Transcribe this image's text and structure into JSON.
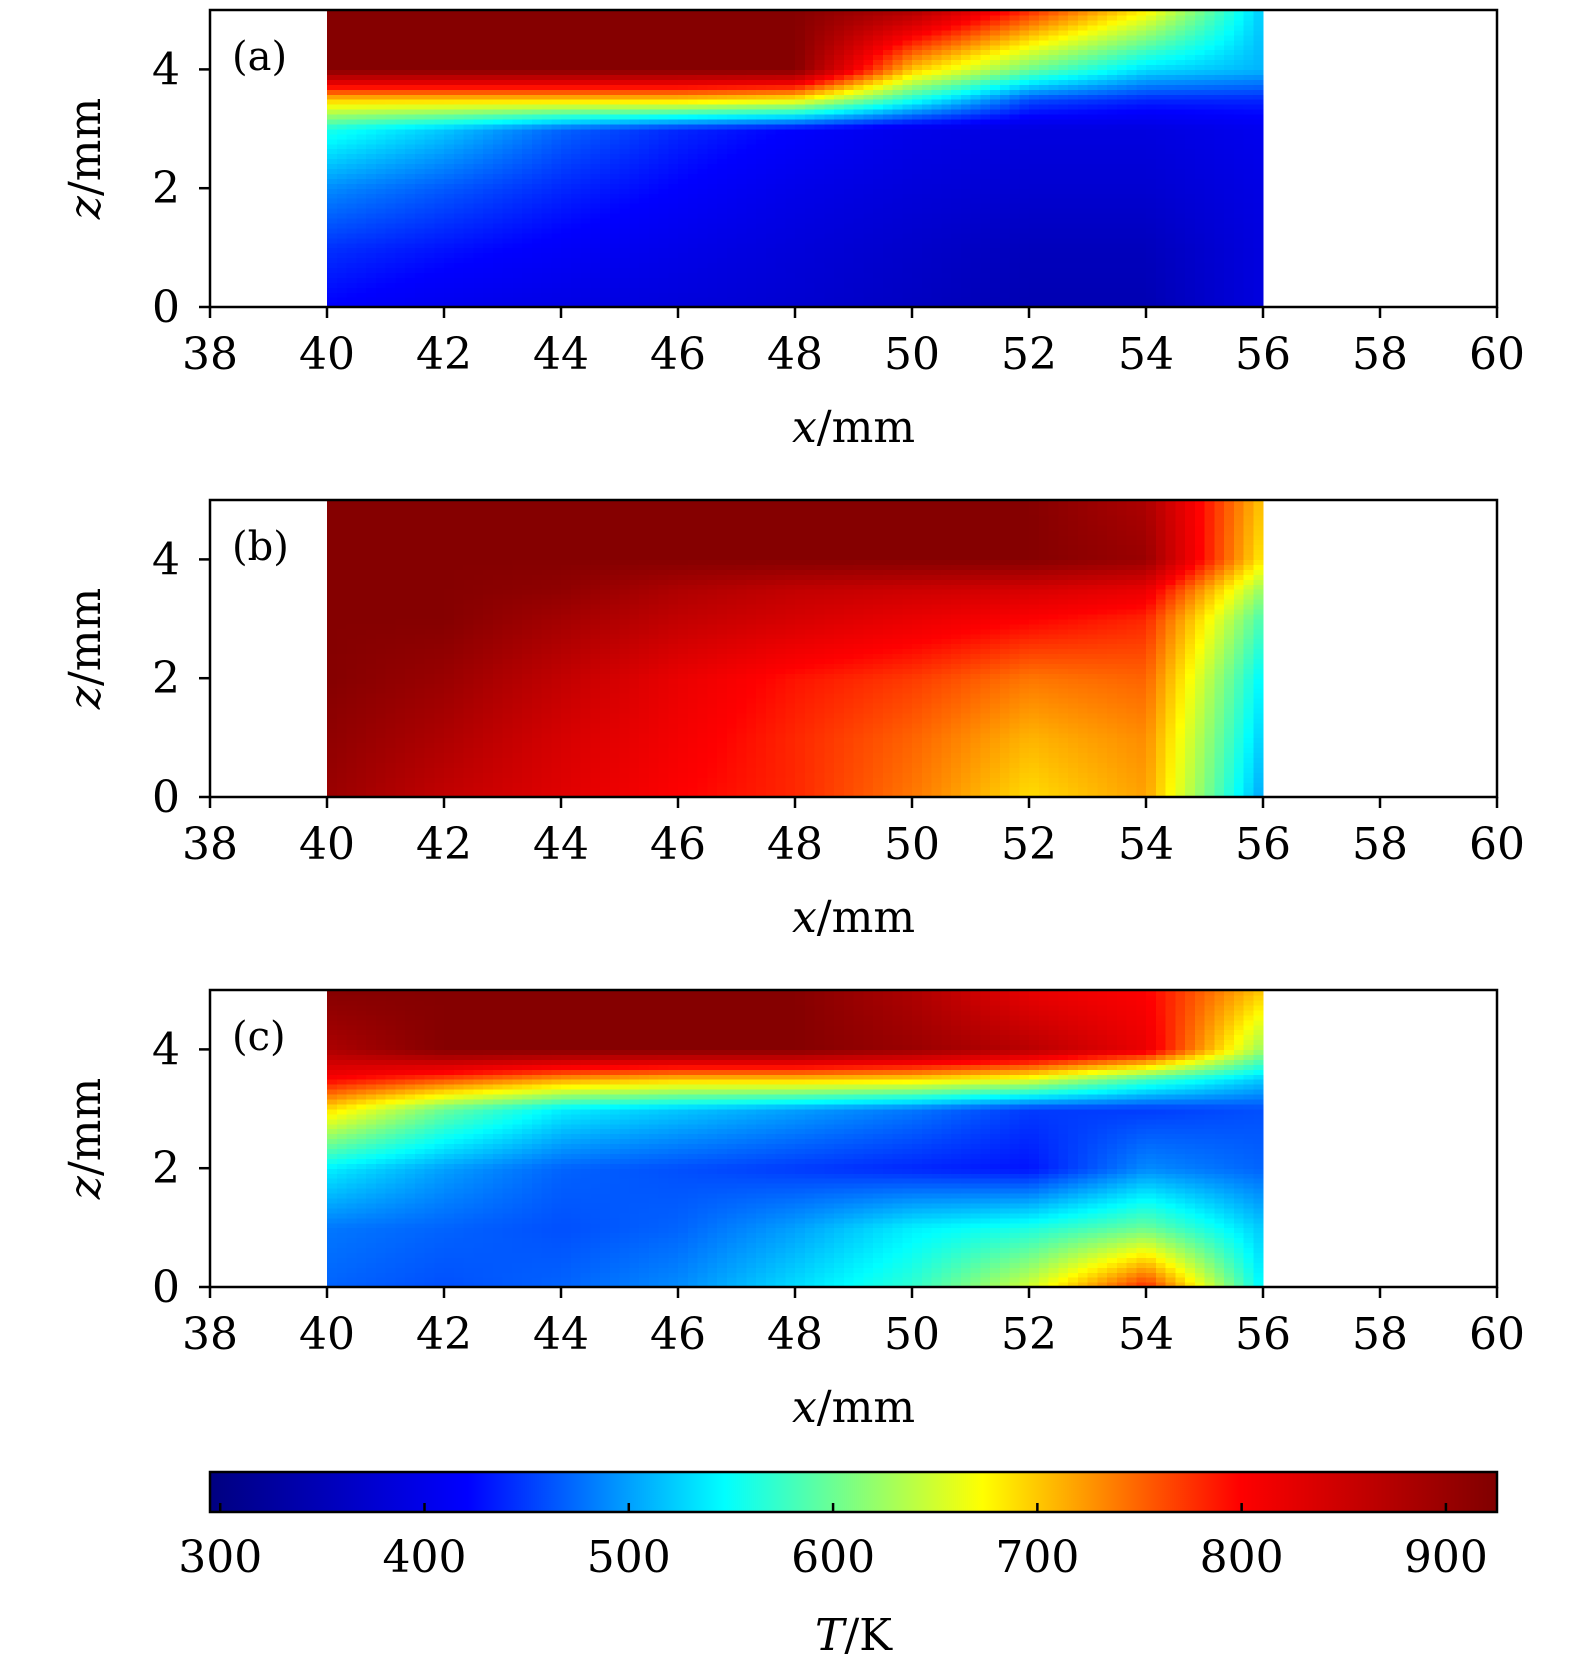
{
  "chart_data": [
    {
      "type": "heatmap",
      "panel_label": "(a)",
      "xlabel": "x/mm",
      "ylabel": "z/mm",
      "xlim": [
        38,
        60
      ],
      "ylim": [
        0,
        5
      ],
      "xticks": [
        "38",
        "40",
        "42",
        "44",
        "46",
        "48",
        "50",
        "52",
        "54",
        "56",
        "58",
        "60"
      ],
      "yticks": [
        "0",
        "2",
        "4"
      ],
      "x": [
        40,
        42,
        44,
        46,
        48,
        50,
        52,
        54,
        56
      ],
      "z": [
        0,
        1,
        2,
        3,
        3.5,
        4,
        5
      ],
      "values": [
        [
          420,
          405,
          395,
          385,
          375,
          360,
          345,
          345,
          390
        ],
        [
          445,
          430,
          415,
          400,
          385,
          370,
          355,
          355,
          390
        ],
        [
          490,
          465,
          440,
          420,
          400,
          385,
          375,
          375,
          395
        ],
        [
          560,
          520,
          470,
          440,
          420,
          400,
          390,
          390,
          405
        ],
        [
          700,
          700,
          700,
          700,
          680,
          560,
          460,
          440,
          440
        ],
        [
          920,
          920,
          920,
          920,
          920,
          700,
          600,
          530,
          510
        ],
        [
          920,
          920,
          920,
          920,
          920,
          880,
          780,
          680,
          520
        ]
      ]
    },
    {
      "type": "heatmap",
      "panel_label": "(b)",
      "xlabel": "x/mm",
      "ylabel": "z/mm",
      "xlim": [
        38,
        60
      ],
      "ylim": [
        0,
        5
      ],
      "xticks": [
        "38",
        "40",
        "42",
        "44",
        "46",
        "48",
        "50",
        "52",
        "54",
        "56",
        "58",
        "60"
      ],
      "yticks": [
        "0",
        "2",
        "4"
      ],
      "x": [
        40,
        42,
        44,
        46,
        48,
        50,
        52,
        54,
        56
      ],
      "z": [
        0,
        1,
        2,
        3,
        3.5,
        4,
        5
      ],
      "values": [
        [
          900,
          860,
          830,
          800,
          780,
          740,
          690,
          720,
          500
        ],
        [
          910,
          880,
          840,
          810,
          780,
          750,
          710,
          730,
          520
        ],
        [
          920,
          900,
          860,
          820,
          790,
          770,
          740,
          750,
          540
        ],
        [
          920,
          920,
          890,
          860,
          840,
          820,
          800,
          780,
          580
        ],
        [
          920,
          920,
          910,
          880,
          860,
          850,
          840,
          820,
          620
        ],
        [
          920,
          920,
          920,
          920,
          920,
          920,
          920,
          900,
          680
        ],
        [
          920,
          920,
          920,
          920,
          920,
          920,
          920,
          880,
          700
        ]
      ]
    },
    {
      "type": "heatmap",
      "panel_label": "(c)",
      "xlabel": "x/mm",
      "ylabel": "z/mm",
      "xlim": [
        38,
        60
      ],
      "ylim": [
        0,
        5
      ],
      "xticks": [
        "38",
        "40",
        "42",
        "44",
        "46",
        "48",
        "50",
        "52",
        "54",
        "56",
        "58",
        "60"
      ],
      "yticks": [
        "0",
        "2",
        "4"
      ],
      "x": [
        40,
        42,
        44,
        46,
        48,
        50,
        52,
        54,
        56
      ],
      "z": [
        0,
        1,
        2,
        3,
        3.5,
        4,
        5
      ],
      "values": [
        [
          470,
          460,
          470,
          490,
          530,
          570,
          650,
          780,
          540
        ],
        [
          480,
          470,
          460,
          470,
          500,
          540,
          560,
          600,
          520
        ],
        [
          540,
          500,
          470,
          460,
          450,
          440,
          430,
          490,
          470
        ],
        [
          690,
          600,
          540,
          520,
          500,
          480,
          450,
          450,
          460
        ],
        [
          800,
          760,
          720,
          700,
          700,
          690,
          660,
          580,
          520
        ],
        [
          880,
          920,
          920,
          920,
          920,
          900,
          870,
          820,
          620
        ],
        [
          920,
          920,
          920,
          920,
          920,
          880,
          820,
          800,
          700
        ]
      ]
    }
  ],
  "colorbar": {
    "label": "T/K",
    "range": [
      295,
      925
    ],
    "ticks": [
      "300",
      "400",
      "500",
      "600",
      "700",
      "800",
      "900"
    ],
    "colormap": [
      "#000080",
      "#0000ff",
      "#00ffff",
      "#ffff00",
      "#ff0000",
      "#800000"
    ]
  }
}
